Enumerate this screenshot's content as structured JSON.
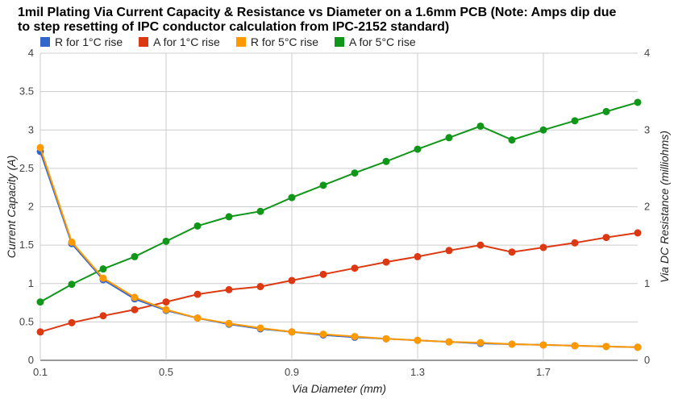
{
  "chart_data": {
    "type": "line",
    "title_line1": "1mil Plating Via Current Capacity & Resistance vs Diameter on a 1.6mm PCB (Note: Amps dip due",
    "title_line2": "to step resetting of IPC conductor calculation from IPC-2152 standard)",
    "xlabel": "Via Diameter (mm)",
    "ylabel_left": "Current Capacity (A)",
    "ylabel_right": "Via DC Resistance (milliohms)",
    "xlim": [
      0.1,
      2.0
    ],
    "ylim_left": [
      0,
      4
    ],
    "ylim_right": [
      0,
      4
    ],
    "x_ticks": [
      "0.1",
      "0.5",
      "0.9",
      "1.3",
      "1.7"
    ],
    "x_tick_values": [
      0.1,
      0.5,
      0.9,
      1.3,
      1.7
    ],
    "y_ticks_left": [
      "0",
      "0.5",
      "1",
      "1.5",
      "2",
      "2.5",
      "3",
      "3.5",
      "4"
    ],
    "y_tick_values_left": [
      0,
      0.5,
      1,
      1.5,
      2,
      2.5,
      3,
      3.5,
      4
    ],
    "y_ticks_right": [
      "0",
      "1",
      "2",
      "3",
      "4"
    ],
    "y_tick_values_right": [
      0,
      1,
      2,
      3,
      4
    ],
    "legend_position": "top",
    "grid": true,
    "x": [
      0.1,
      0.2,
      0.3,
      0.4,
      0.5,
      0.6,
      0.7,
      0.8,
      0.9,
      1.0,
      1.1,
      1.2,
      1.3,
      1.4,
      1.5,
      1.6,
      1.7,
      1.8,
      1.9,
      2.0
    ],
    "series": [
      {
        "name": "R for 1°C rise",
        "axis": "right",
        "color": "#3366cc",
        "values": [
          2.72,
          1.52,
          1.05,
          0.8,
          0.65,
          0.55,
          0.47,
          0.41,
          0.37,
          0.33,
          0.3,
          0.28,
          0.26,
          0.24,
          0.22,
          0.21,
          0.2,
          0.19,
          0.18,
          0.17
        ]
      },
      {
        "name": "A for 1°C rise",
        "axis": "left",
        "color": "#dc3912",
        "values": [
          0.37,
          0.49,
          0.58,
          0.66,
          0.76,
          0.86,
          0.92,
          0.96,
          1.04,
          1.12,
          1.2,
          1.28,
          1.35,
          1.43,
          1.5,
          1.41,
          1.47,
          1.53,
          1.6,
          1.66
        ]
      },
      {
        "name": "R for 5°C rise",
        "axis": "right",
        "color": "#ff9900",
        "values": [
          2.77,
          1.54,
          1.07,
          0.82,
          0.66,
          0.55,
          0.48,
          0.42,
          0.37,
          0.34,
          0.31,
          0.28,
          0.26,
          0.24,
          0.23,
          0.21,
          0.2,
          0.19,
          0.18,
          0.17
        ]
      },
      {
        "name": "A for 5°C rise",
        "axis": "left",
        "color": "#109618",
        "values": [
          0.76,
          0.99,
          1.19,
          1.35,
          1.55,
          1.75,
          1.87,
          1.94,
          2.12,
          2.28,
          2.44,
          2.59,
          2.75,
          2.9,
          3.05,
          2.87,
          3.0,
          3.12,
          3.24,
          3.36
        ]
      }
    ]
  }
}
